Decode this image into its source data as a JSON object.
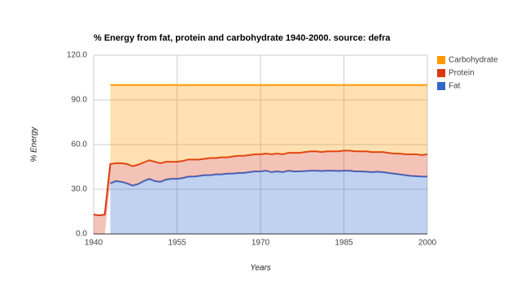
{
  "chart_data": {
    "type": "stacked-area",
    "title": "% Energy from fat, protein and carbohydrate 1940-2000. source: defra",
    "x_label": "Years",
    "y_label": "% Energy",
    "x": [
      1940,
      1941,
      1942,
      1943,
      1944,
      1945,
      1946,
      1947,
      1948,
      1949,
      1950,
      1951,
      1952,
      1953,
      1954,
      1955,
      1956,
      1957,
      1958,
      1959,
      1960,
      1961,
      1962,
      1963,
      1964,
      1965,
      1966,
      1967,
      1968,
      1969,
      1970,
      1971,
      1972,
      1973,
      1974,
      1975,
      1976,
      1977,
      1978,
      1979,
      1980,
      1981,
      1982,
      1983,
      1984,
      1985,
      1986,
      1987,
      1988,
      1989,
      1990,
      1991,
      1992,
      1993,
      1994,
      1995,
      1996,
      1997,
      1998,
      1999,
      2000
    ],
    "series": [
      {
        "name": "Fat",
        "color": "#3366cc",
        "values": [
          null,
          null,
          null,
          34,
          35.5,
          35,
          34,
          32.5,
          33.5,
          35.5,
          37,
          35.5,
          35,
          36.5,
          37,
          37,
          37.5,
          38.5,
          38.5,
          39,
          39.5,
          39.5,
          40,
          40,
          40.5,
          40.5,
          41,
          41,
          41.5,
          42,
          42,
          42.5,
          41.5,
          42,
          41.5,
          42.5,
          42,
          42,
          42.2,
          42.5,
          42.5,
          42.3,
          42.5,
          42.5,
          42.3,
          42.5,
          42.5,
          42,
          42,
          41.8,
          41.5,
          41.8,
          41.5,
          41,
          40.5,
          40,
          39.5,
          39,
          38.8,
          38.5,
          38.5
        ]
      },
      {
        "name": "Protein",
        "color": "#dc3912",
        "values": [
          13,
          12.5,
          13,
          13,
          12,
          12.5,
          13,
          13,
          13,
          12.5,
          12.5,
          13,
          12.5,
          12,
          11.5,
          11.5,
          11.5,
          11.5,
          11.5,
          11,
          11,
          11.5,
          11,
          11.5,
          11,
          11.5,
          11.5,
          11.5,
          11.5,
          11.5,
          11.5,
          11.5,
          12,
          12,
          12,
          12,
          12.5,
          12.5,
          12.8,
          13,
          13,
          12.7,
          13,
          13,
          13.2,
          13.5,
          13.5,
          13.5,
          13.5,
          13.7,
          13.5,
          13.2,
          13.5,
          13.5,
          13.5,
          14,
          14,
          14.5,
          14.7,
          14.5,
          15
        ]
      },
      {
        "name": "Carbohydrate",
        "color": "#ff9900",
        "values": [
          null,
          null,
          null,
          53,
          52.5,
          52.5,
          53,
          54.5,
          53.5,
          52,
          50.5,
          51.5,
          52.5,
          51.5,
          51.5,
          51.5,
          51,
          50,
          50,
          50,
          49.5,
          49,
          49,
          48.5,
          48.5,
          48,
          47.5,
          47.5,
          47,
          46.5,
          46.5,
          46,
          46.5,
          46,
          46.5,
          45.5,
          45.5,
          45.5,
          45,
          44.5,
          44.5,
          45,
          44.5,
          44.5,
          44.5,
          44,
          44,
          44.5,
          44.5,
          44.5,
          45,
          45,
          45,
          45.5,
          46,
          46,
          46.5,
          46.5,
          46.5,
          47,
          46.5
        ]
      }
    ],
    "xlim": [
      1940,
      2000
    ],
    "xticks": [
      1940,
      1955,
      1970,
      1985,
      2000
    ],
    "ylim": [
      0,
      120
    ],
    "yticks": [
      {
        "value": 0,
        "label": "0.0"
      },
      {
        "value": 30,
        "label": "30.0"
      },
      {
        "value": 60,
        "label": "60.0"
      },
      {
        "value": 90,
        "label": "90.0"
      },
      {
        "value": 120,
        "label": "120.0"
      }
    ],
    "grid": true,
    "legend": "right"
  }
}
